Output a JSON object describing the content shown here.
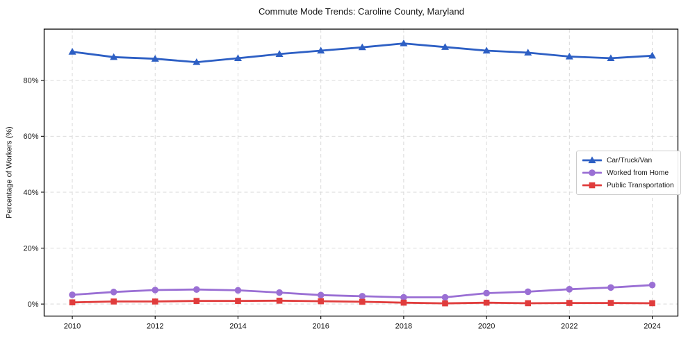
{
  "chart_data": {
    "type": "line",
    "title": "Commute Mode Trends: Caroline County, Maryland",
    "xlabel": "",
    "ylabel": "Percentage of Workers (%)",
    "x": [
      2010,
      2011,
      2012,
      2013,
      2014,
      2015,
      2016,
      2017,
      2018,
      2019,
      2020,
      2021,
      2022,
      2023,
      2024
    ],
    "series": [
      {
        "id": "car-truck-van",
        "name": "Car/Truck/Van",
        "color": "#2d5fc4",
        "marker": "triangle",
        "values": [
          90.2,
          88.3,
          87.7,
          86.5,
          87.9,
          89.4,
          90.6,
          91.8,
          93.2,
          91.9,
          90.6,
          89.9,
          88.5,
          87.9,
          88.8
        ]
      },
      {
        "id": "worked-from-home",
        "name": "Worked from Home",
        "color": "#9a6fd4",
        "marker": "circle",
        "values": [
          3.3,
          4.3,
          5.0,
          5.2,
          4.9,
          4.1,
          3.2,
          2.8,
          2.4,
          2.4,
          3.9,
          4.4,
          5.3,
          5.9,
          6.8
        ]
      },
      {
        "id": "public-transportation",
        "name": "Public Transportation",
        "color": "#e03c3c",
        "marker": "square",
        "values": [
          0.6,
          0.9,
          0.9,
          1.1,
          1.1,
          1.2,
          1.0,
          0.8,
          0.5,
          0.25,
          0.5,
          0.3,
          0.4,
          0.4,
          0.3
        ]
      }
    ],
    "xticks": [
      2010,
      2012,
      2014,
      2016,
      2018,
      2020,
      2022,
      2024
    ],
    "xticklabels": [
      "2010",
      "2012",
      "2014",
      "2016",
      "2018",
      "2020",
      "2022",
      "2024"
    ],
    "yticks": [
      0,
      20,
      40,
      60,
      80
    ],
    "yticklabels": [
      "0%",
      "20%",
      "40%",
      "60%",
      "80%"
    ],
    "xlim": [
      2009.32,
      2024.62
    ],
    "ylim": [
      -4.3,
      98.3
    ],
    "grid": true,
    "legend_position": "center right",
    "colors": {
      "grid": "#d9d9d9",
      "axis": "#000000",
      "text": "#151515",
      "background": "#ffffff"
    }
  }
}
